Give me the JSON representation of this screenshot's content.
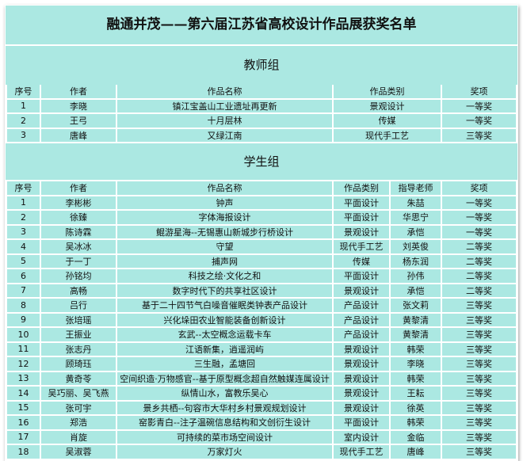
{
  "title": "融通并茂——第六届江苏省高校设计作品展获奖名单",
  "teacher_group": {
    "label": "教师组",
    "headers": [
      "序号",
      "作者",
      "作品名称",
      "作品类别",
      "奖项"
    ],
    "rows": [
      [
        "1",
        "李晓",
        "镇江宝盖山工业遗址再更新",
        "景观设计",
        "一等奖"
      ],
      [
        "2",
        "王弓",
        "十月层林",
        "传媒",
        "一等奖"
      ],
      [
        "3",
        "唐峰",
        "又绿江南",
        "现代手工艺",
        "三等奖"
      ]
    ]
  },
  "student_group": {
    "label": "学生组",
    "headers": [
      "序号",
      "作者",
      "作品名称",
      "作品类别",
      "指导老师",
      "奖项"
    ],
    "rows": [
      [
        "1",
        "李彬彬",
        "钟声",
        "平面设计",
        "朱喆",
        "一等奖"
      ],
      [
        "2",
        "徐臻",
        "字体海报设计",
        "平面设计",
        "华思宁",
        "一等奖"
      ],
      [
        "3",
        "陈诗霖",
        "鲲游星海--无锡惠山新城步行桥设计",
        "景观设计",
        "承恺",
        "一等奖"
      ],
      [
        "4",
        "吴冰冰",
        "守望",
        "现代手工艺",
        "刘英俊",
        "二等奖"
      ],
      [
        "5",
        "于一丁",
        "捕声网",
        "传媒",
        "杨东润",
        "二等奖"
      ],
      [
        "6",
        "孙铭均",
        "科技之绘·文化之和",
        "平面设计",
        "孙伟",
        "二等奖"
      ],
      [
        "7",
        "高畅",
        "数字时代下的共享社区设计",
        "景观设计",
        "承恺",
        "二等奖"
      ],
      [
        "8",
        "吕行",
        "基于二十四节气白噪音催眠类钟表产品设计",
        "产品设计",
        "张文莉",
        "三等奖"
      ],
      [
        "9",
        "张培瑶",
        "兴化垛田农业智能装备创新设计",
        "产品设计",
        "黄黎清",
        "三等奖"
      ],
      [
        "10",
        "王振业",
        "玄武--太空概念运载卡车",
        "产品设计",
        "黄黎清",
        "三等奖"
      ],
      [
        "11",
        "张志丹",
        "江语新集，逍遥润屿",
        "景观设计",
        "韩荣",
        "三等奖"
      ],
      [
        "12",
        "顾琦珏",
        "三生融，孟塘回",
        "景观设计",
        "李晓",
        "三等奖"
      ],
      [
        "13",
        "黄奇苓",
        "空间织造·万物感官--基于原型概念超自然触媒连属设计",
        "景观设计",
        "韩荣",
        "三等奖"
      ],
      [
        "14",
        "吴巧丽、吴飞燕",
        "纵情山水，富教乐吴心",
        "景观设计",
        "王耘",
        "三等奖"
      ],
      [
        "15",
        "张可宇",
        "景乡共栖--句容市大华村乡村景观规划设计",
        "景观设计",
        "徐英",
        "三等奖"
      ],
      [
        "16",
        "郑浩",
        "窑影青白--注子温碗信息结构和文创衍生设计",
        "平面设计",
        "韩荣",
        "三等奖"
      ],
      [
        "17",
        "肖旋",
        "可持续的菜市场空间设计",
        "室内设计",
        "金临",
        "三等奖"
      ],
      [
        "18",
        "吴淑蓉",
        "万家灯火",
        "现代手工艺",
        "唐峰",
        "三等奖"
      ]
    ]
  }
}
